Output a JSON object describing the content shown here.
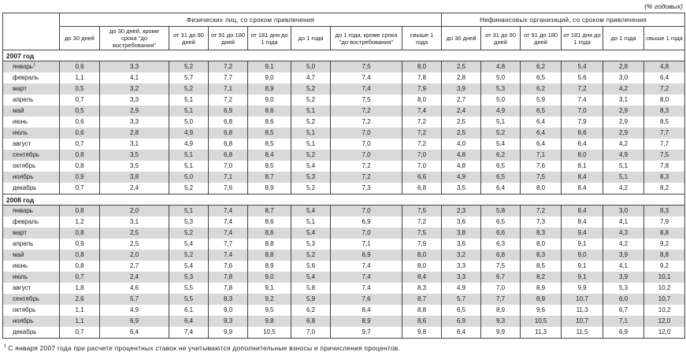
{
  "units_note": "(% годовых)",
  "colors": {
    "row_stripe": "#d9d9d9",
    "border": "#454545",
    "text": "#1a1a1a"
  },
  "table": {
    "groups": [
      {
        "label": "Физических лиц, со сроком привлечения",
        "colspan": 8
      },
      {
        "label": "Нефинансовых организаций, со сроком привлечения",
        "colspan": 6
      }
    ],
    "columns": [
      "до 30 дней",
      "до 30 дней, кроме срока \"до востребования\"",
      "от 31 до 90 дней",
      "от 91 до 180 дней",
      "от 181 дня до 1 года",
      "до 1 года",
      "до 1 года, кроме срока \"до востребования\"",
      "свыше 1 года",
      "до 30 дней",
      "от 31 до 90 дней",
      "от 91 до 180 дней",
      "от 181 дня до 1 года",
      "до 1 года",
      "свыше 1 года"
    ],
    "sections": [
      {
        "year": "2007 год",
        "rows": [
          {
            "month": "январь",
            "sup": "1",
            "values": [
              "0,6",
              "3,3",
              "5,2",
              "7,2",
              "9,1",
              "5,0",
              "7,5",
              "8,0",
              "2,5",
              "4,8",
              "6,2",
              "5,4",
              "2,8",
              "4,8"
            ]
          },
          {
            "month": "февраль",
            "values": [
              "1,1",
              "4,1",
              "5,7",
              "7,7",
              "9,0",
              "4,7",
              "7,4",
              "7,8",
              "2,8",
              "5,0",
              "6,5",
              "5,6",
              "3,0",
              "6,4"
            ]
          },
          {
            "month": "март",
            "values": [
              "0,5",
              "3,2",
              "5,2",
              "7,1",
              "8,9",
              "5,2",
              "7,4",
              "7,9",
              "3,9",
              "5,3",
              "6,2",
              "7,2",
              "4,2",
              "7,2"
            ]
          },
          {
            "month": "апрель",
            "values": [
              "0,7",
              "3,3",
              "5,1",
              "7,2",
              "9,0",
              "5,2",
              "7,5",
              "8,0",
              "2,7",
              "5,0",
              "5,9",
              "7,4",
              "3,1",
              "8,0"
            ]
          },
          {
            "month": "май",
            "values": [
              "0,5",
              "2,9",
              "5,1",
              "6,9",
              "8,6",
              "5,1",
              "7,2",
              "7,4",
              "2,4",
              "4,9",
              "6,5",
              "7,0",
              "2,9",
              "8,3"
            ]
          },
          {
            "month": "июнь",
            "values": [
              "0,6",
              "3,3",
              "5,0",
              "6,8",
              "8,6",
              "5,2",
              "7,2",
              "7,2",
              "2,5",
              "5,1",
              "6,4",
              "7,9",
              "2,9",
              "8,5"
            ]
          },
          {
            "month": "июль",
            "values": [
              "0,6",
              "2,8",
              "4,9",
              "6,8",
              "8,5",
              "5,1",
              "7,0",
              "7,2",
              "2,5",
              "5,2",
              "6,4",
              "8,6",
              "2,9",
              "7,7"
            ]
          },
          {
            "month": "август",
            "values": [
              "0,7",
              "3,1",
              "4,9",
              "6,8",
              "8,5",
              "5,1",
              "7,0",
              "7,2",
              "4,0",
              "5,4",
              "6,4",
              "6,4",
              "4,2",
              "7,7"
            ]
          },
          {
            "month": "сентябрь",
            "values": [
              "0,8",
              "3,5",
              "5,1",
              "6,8",
              "8,4",
              "5,2",
              "7,0",
              "7,0",
              "4,8",
              "6,2",
              "7,1",
              "8,0",
              "4,9",
              "7,5"
            ]
          },
          {
            "month": "октябрь",
            "values": [
              "0,8",
              "3,5",
              "5,1",
              "7,0",
              "8,5",
              "5,4",
              "7,2",
              "7,0",
              "4,8",
              "6,5",
              "7,6",
              "8,1",
              "5,1",
              "7,8"
            ]
          },
          {
            "month": "ноябрь",
            "values": [
              "0,9",
              "3,8",
              "5,0",
              "7,1",
              "8,7",
              "5,3",
              "7,2",
              "6,6",
              "4,9",
              "6,5",
              "7,5",
              "8,4",
              "5,1",
              "8,3"
            ]
          },
          {
            "month": "декабрь",
            "values": [
              "0,7",
              "2,4",
              "5,2",
              "7,6",
              "8,9",
              "5,2",
              "7,3",
              "6,8",
              "3,5",
              "6,4",
              "8,0",
              "8,4",
              "4,2",
              "8,2"
            ]
          }
        ]
      },
      {
        "year": "2008 год",
        "rows": [
          {
            "month": "январь",
            "values": [
              "0,8",
              "2,0",
              "5,1",
              "7,4",
              "8,7",
              "5,4",
              "7,0",
              "7,5",
              "2,3",
              "5,8",
              "7,2",
              "8,4",
              "3,0",
              "8,3"
            ]
          },
          {
            "month": "февраль",
            "values": [
              "1,2",
              "3,1",
              "5,3",
              "7,4",
              "8,6",
              "5,1",
              "6,9",
              "7,2",
              "3,6",
              "6,5",
              "7,3",
              "8,4",
              "4,1",
              "7,9"
            ]
          },
          {
            "month": "март",
            "values": [
              "0,8",
              "2,5",
              "5,2",
              "7,4",
              "8,6",
              "5,4",
              "7,0",
              "7,5",
              "3,8",
              "6,6",
              "8,3",
              "9,4",
              "4,3",
              "8,8"
            ]
          },
          {
            "month": "апрель",
            "values": [
              "0,9",
              "2,5",
              "5,4",
              "7,7",
              "8,8",
              "5,3",
              "7,1",
              "7,9",
              "3,6",
              "6,3",
              "8,0",
              "9,1",
              "4,2",
              "9,2"
            ]
          },
          {
            "month": "май",
            "values": [
              "0,8",
              "2,0",
              "5,2",
              "7,4",
              "8,8",
              "5,2",
              "6,9",
              "8,0",
              "3,2",
              "6,8",
              "8,3",
              "9,0",
              "3,9",
              "8,8"
            ]
          },
          {
            "month": "июнь",
            "values": [
              "0,8",
              "2,7",
              "5,4",
              "7,6",
              "8,9",
              "5,6",
              "7,4",
              "8,0",
              "3,3",
              "7,5",
              "8,5",
              "9,1",
              "4,1",
              "9,2"
            ]
          },
          {
            "month": "июль",
            "values": [
              "0,7",
              "2,4",
              "5,3",
              "7,8",
              "9,0",
              "5,4",
              "7,4",
              "8,4",
              "3,3",
              "6,7",
              "8,2",
              "9,1",
              "3,9",
              "10,1"
            ]
          },
          {
            "month": "август",
            "values": [
              "1,8",
              "4,6",
              "5,5",
              "7,8",
              "9,1",
              "5,8",
              "7,4",
              "8,3",
              "4,9",
              "7,0",
              "8,9",
              "9,9",
              "5,3",
              "10,2"
            ]
          },
          {
            "month": "сентябрь",
            "values": [
              "2,6",
              "5,7",
              "5,5",
              "8,3",
              "9,2",
              "5,9",
              "7,6",
              "8,7",
              "5,7",
              "7,7",
              "8,9",
              "10,7",
              "6,0",
              "10,7"
            ]
          },
          {
            "month": "октябрь",
            "values": [
              "1,1",
              "4,9",
              "6,1",
              "9,0",
              "9,5",
              "6,2",
              "8,4",
              "8,8",
              "6,5",
              "8,9",
              "9,6",
              "11,3",
              "6,7",
              "10,2"
            ]
          },
          {
            "month": "ноябрь",
            "values": [
              "1,1",
              "6,9",
              "6,4",
              "9,3",
              "9,8",
              "6,8",
              "8,9",
              "8,6",
              "6,9",
              "9,3",
              "10,5",
              "10,7",
              "7,1",
              "12,0"
            ]
          },
          {
            "month": "декабрь",
            "values": [
              "0,7",
              "6,4",
              "7,4",
              "9,9",
              "10,5",
              "7,0",
              "9,7",
              "9,8",
              "6,4",
              "9,9",
              "11,3",
              "11,5",
              "6,9",
              "12,0"
            ]
          }
        ]
      }
    ]
  },
  "footnote": {
    "marker": "1",
    "text": "С января 2007 года при расчете процентных ставок не учитываются дополнительные взносы и причисления процентов."
  }
}
